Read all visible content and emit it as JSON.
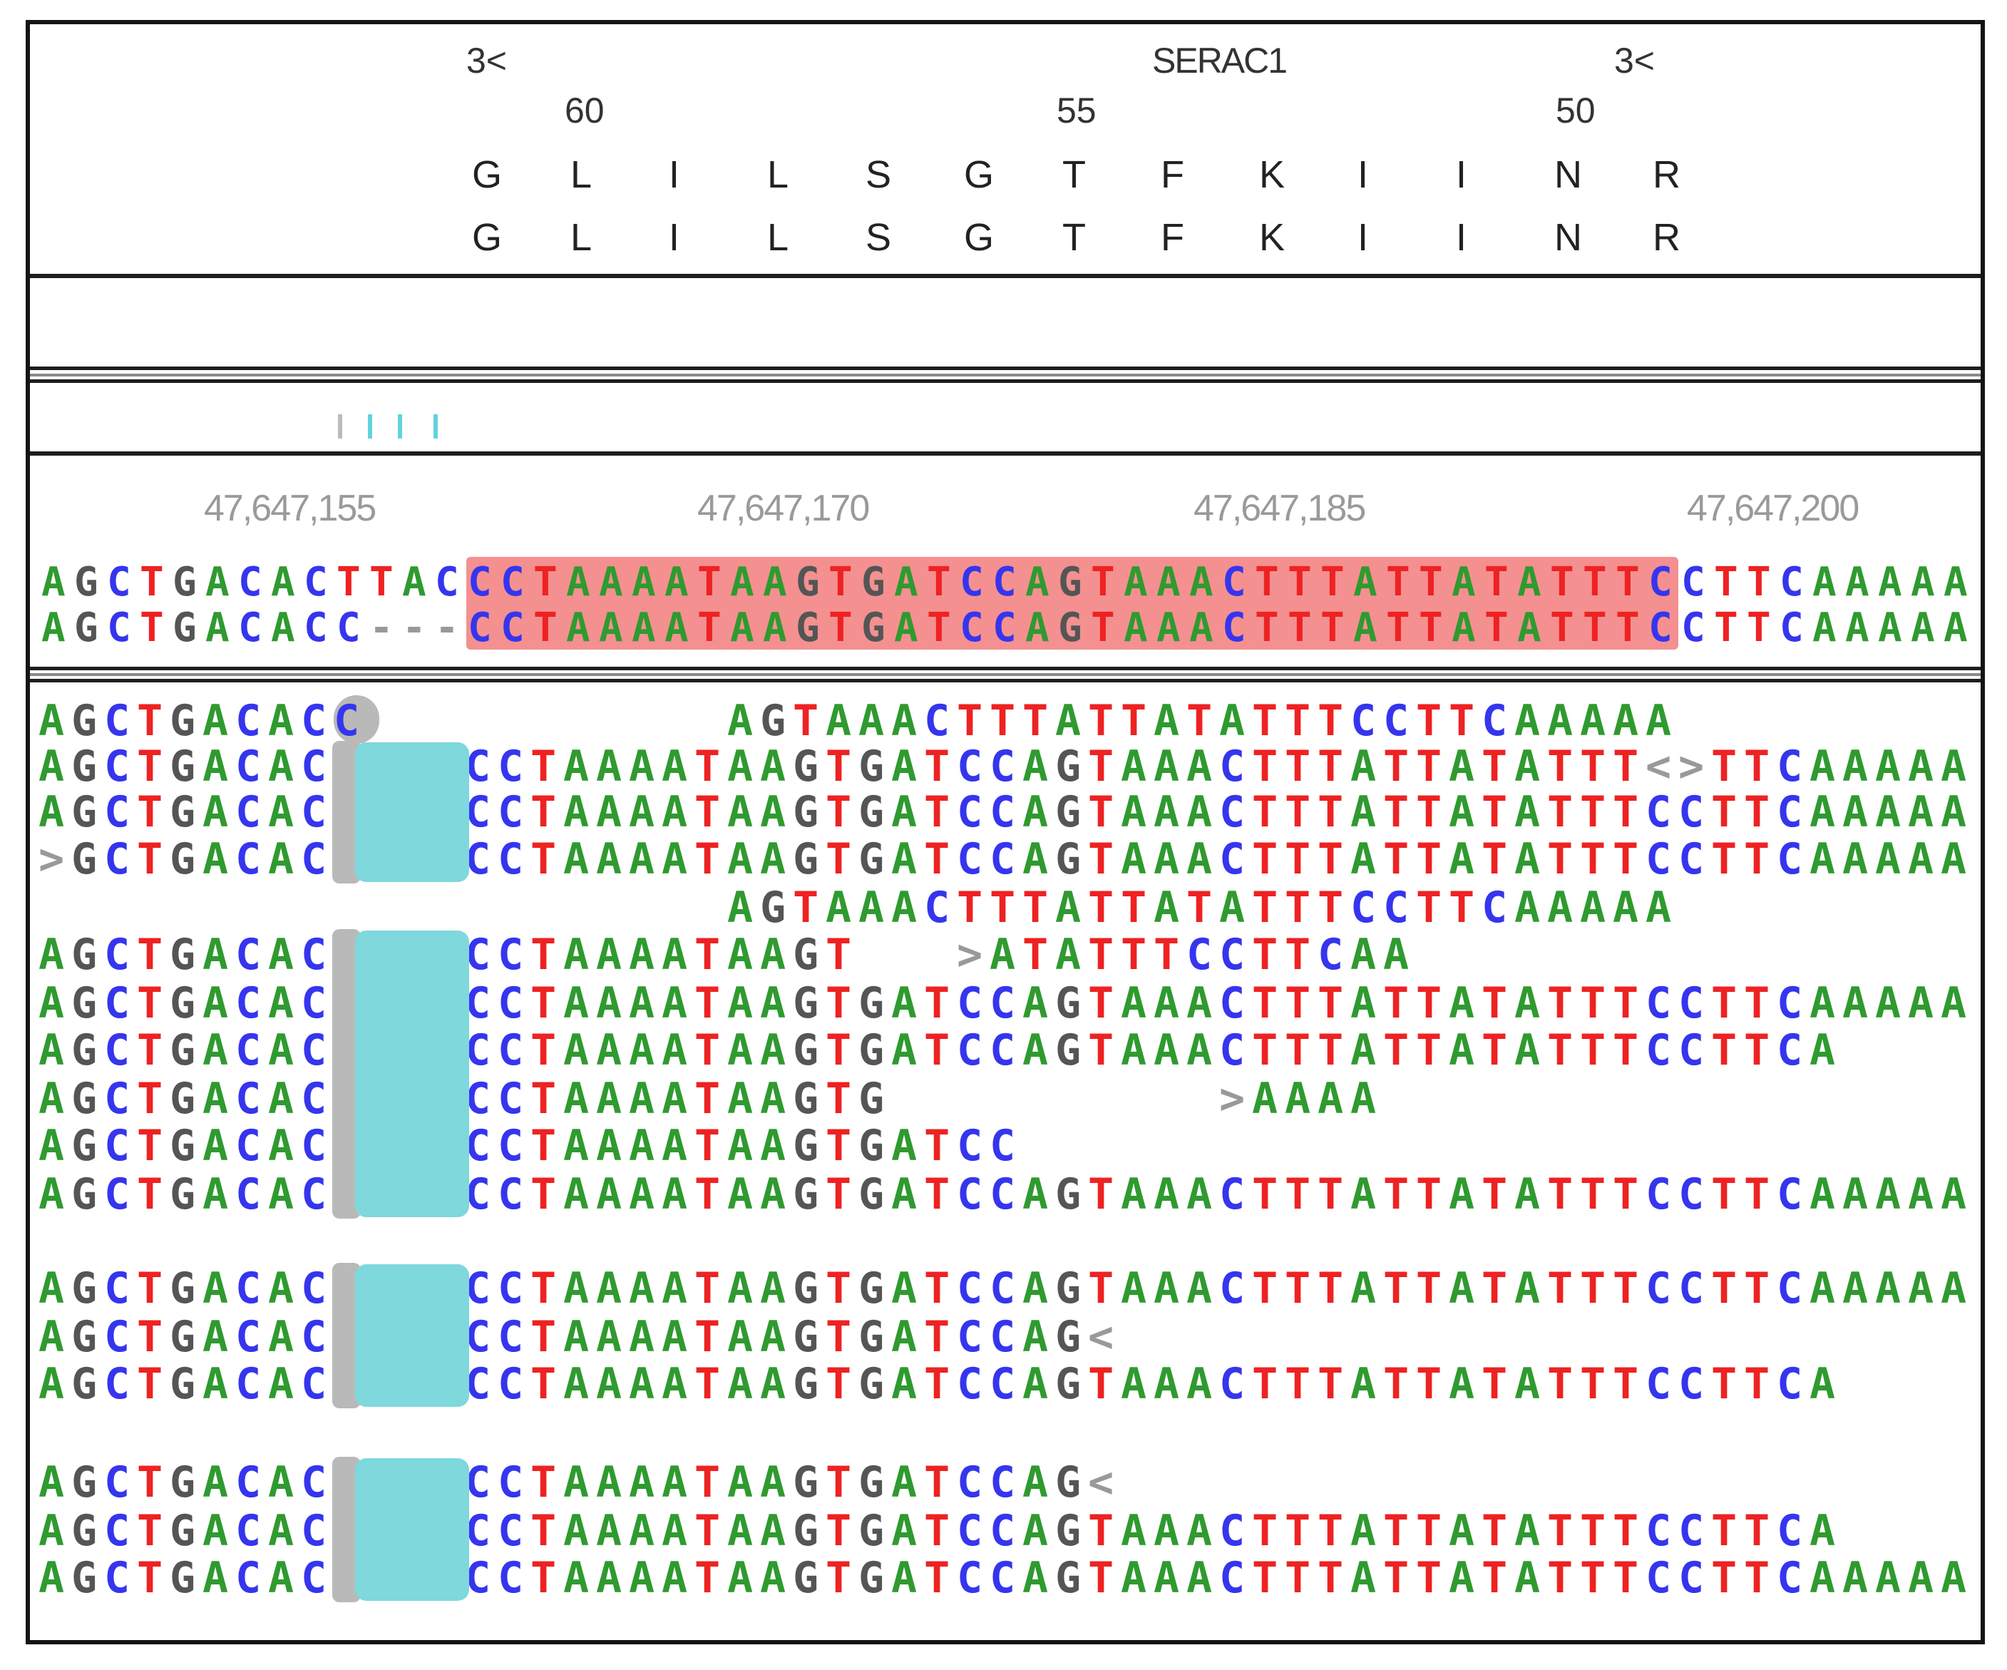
{
  "gene": {
    "name": "SERAC1",
    "strand_left": "3<",
    "strand_right": "3<",
    "codon_numbers": [
      "60",
      "55",
      "50"
    ],
    "aa_row1": [
      "G",
      "L",
      "I",
      "L",
      "S",
      "G",
      "T",
      "F",
      "K",
      "I",
      "I",
      "N",
      "R"
    ],
    "aa_row2": [
      "G",
      "L",
      "I",
      "L",
      "S",
      "G",
      "T",
      "F",
      "K",
      "I",
      "I",
      "N",
      "R"
    ]
  },
  "coords": [
    "47,647,155",
    "47,647,170",
    "47,647,185",
    "47,647,200"
  ],
  "reference": {
    "line1": "AGCTGACACTTACCCTAAAATAAGTGATCCAGTAAACTTTATTATATTTCCTTCAAAAA",
    "line2": "AGCTGACACC---CCTAAAATAAGTGATCCAGTAAACTTTATTATATTTCCTTCAAAAA"
  },
  "colors": {
    "A": "#2f9a2f",
    "C": "#3535ee",
    "G": "#555555",
    "T": "#ee2222",
    "highlight": "#f06b6b",
    "insertion": "#7ed8dc"
  },
  "reads": [
    {
      "offset": 0,
      "text": "AGCTGACACC"
    },
    {
      "offset": 21,
      "text": "AGTAAACTTTATTATATTTCCTTCAAAAA"
    },
    {
      "offset": 0,
      "text": "AGCTGACAC    CCTAAAATAAGTGATCCAGTAAACTTTATTATATTT<>TTCAAAAA"
    },
    {
      "offset": 0,
      "text": "AGCTGACAC    CCTAAAATAAGTGATCCAGTAAACTTTATTATATTTCCTTCAAAAA"
    },
    {
      "offset": 0,
      "text": ">GCTGACAC    CCTAAAATAAGTGATCCAGTAAACTTTATTATATTTCCTTCAAAAA"
    },
    {
      "offset": 21,
      "text": "AGTAAACTTTATTATATTTCCTTCAAAAA"
    },
    {
      "offset": 0,
      "text": "AGCTGACAC    CCTAAAATAAGT"
    },
    {
      "offset": 28,
      "text": ">ATATTTCCTTCAA"
    },
    {
      "offset": 0,
      "text": "AGCTGACAC    CCTAAAATAAGTGATCCAGTAAACTTTATTATATTTCCTTCAAAAA"
    },
    {
      "offset": 0,
      "text": "AGCTGACAC    CCTAAAATAAGTGATCCAGTAAACTTTATTATATTTCCTTCA"
    },
    {
      "offset": 0,
      "text": "AGCTGACAC    CCTAAAATAAGTG"
    },
    {
      "offset": 36,
      "text": ">AAAA"
    },
    {
      "offset": 0,
      "text": "AGCTGACAC    CCTAAAATAAGTGATCC"
    },
    {
      "offset": 0,
      "text": "AGCTGACAC    CCTAAAATAAGTGATCCAGTAAACTTTATTATATTTCCTTCAAAAA"
    },
    {
      "offset": 0,
      "text": "AGCTGACAC    CCTAAAATAAGTGATCCAGTAAACTTTATTATATTTCCTTCAAAAA"
    },
    {
      "offset": 0,
      "text": "AGCTGACAC    CCTAAAATAAGTGATCCAG<"
    },
    {
      "offset": 0,
      "text": "AGCTGACAC    CCTAAAATAAGTGATCCAGTAAACTTTATTATATTTCCTTCA"
    },
    {
      "offset": 0,
      "text": "AGCTGACAC    CCTAAAATAAGTGATCCAG<"
    },
    {
      "offset": 0,
      "text": "AGCTGACAC    CCTAAAATAAGTGATCCAGTAAACTTTATTATATTTCCTTCA"
    },
    {
      "offset": 0,
      "text": "AGCTGACAC    CCTAAAATAAGTGATCCAGTAAACTTTATTATATTTCCTTCAAAAA"
    }
  ]
}
